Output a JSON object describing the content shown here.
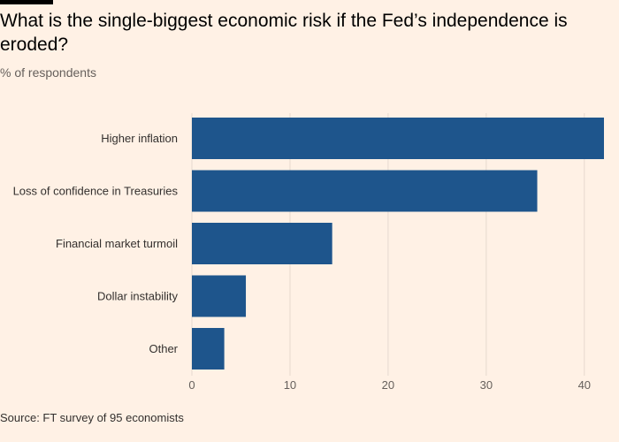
{
  "chart_data": {
    "type": "bar",
    "orientation": "horizontal",
    "title": "What is the single-biggest economic risk if the Fed’s independence is eroded?",
    "subtitle": "% of respondents",
    "categories": [
      "Higher inflation",
      "Loss of confidence in Treasuries",
      "Financial market turmoil",
      "Dollar instability",
      "Other"
    ],
    "values": [
      42,
      35.2,
      14.3,
      5.5,
      3.3
    ],
    "xlim": [
      0,
      42
    ],
    "xticks": [
      0,
      10,
      20,
      30,
      40
    ],
    "xlabel": "",
    "ylabel": "",
    "grid": true,
    "bar_color": "#1e558c",
    "grid_color": "#e6d9ce",
    "background_color": "#fff1e5"
  },
  "source": "Source: FT survey of 95 economists"
}
